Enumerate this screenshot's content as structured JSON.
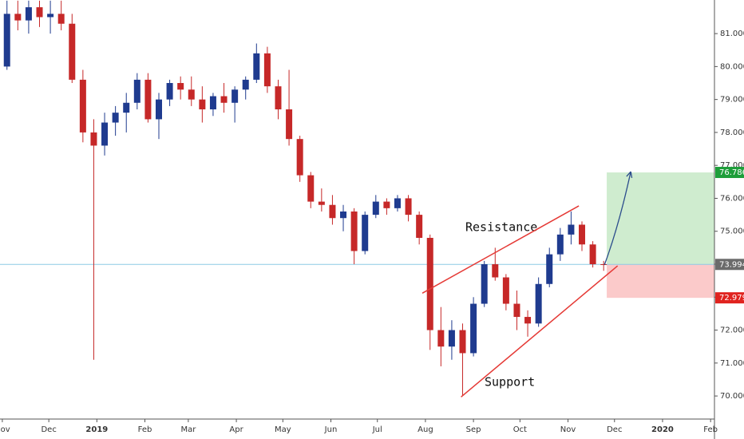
{
  "chart_data": {
    "type": "candlestick",
    "x": [
      3,
      10,
      17,
      24,
      31,
      38,
      45,
      52,
      59,
      66,
      73,
      80,
      87,
      94,
      101,
      108,
      115,
      122,
      129,
      136,
      143,
      150,
      157,
      164,
      171,
      178,
      185,
      192,
      199,
      206,
      213,
      220,
      227,
      234,
      241,
      248,
      255,
      262,
      269,
      276,
      283,
      290,
      297,
      304,
      311,
      318,
      325,
      332,
      339,
      346,
      353,
      360,
      367,
      374,
      381,
      388
    ],
    "open": [
      80.0,
      81.6,
      81.4,
      81.8,
      81.5,
      81.6,
      81.3,
      79.6,
      78.0,
      77.6,
      78.3,
      78.6,
      78.9,
      79.6,
      78.4,
      79.0,
      79.5,
      79.3,
      79.0,
      78.7,
      79.1,
      78.9,
      79.3,
      79.6,
      80.4,
      79.4,
      78.7,
      77.8,
      76.7,
      75.9,
      75.8,
      75.4,
      75.6,
      74.4,
      75.5,
      75.9,
      75.7,
      76.0,
      75.5,
      74.8,
      72.0,
      71.5,
      72.0,
      71.3,
      72.8,
      74.0,
      73.6,
      72.8,
      72.4,
      72.2,
      73.4,
      74.3,
      74.9,
      75.2,
      74.6,
      74.0
    ],
    "high": [
      82.0,
      82.0,
      82.0,
      82.0,
      82.0,
      82.0,
      81.6,
      79.9,
      78.4,
      78.6,
      78.8,
      79.2,
      79.8,
      79.8,
      79.2,
      79.6,
      79.7,
      79.7,
      79.4,
      79.2,
      79.5,
      79.4,
      79.7,
      80.7,
      80.6,
      79.6,
      79.9,
      77.9,
      76.8,
      76.3,
      76.1,
      75.8,
      75.7,
      75.6,
      76.1,
      76.0,
      76.1,
      76.1,
      75.6,
      74.9,
      72.7,
      72.3,
      72.2,
      73.0,
      74.1,
      74.5,
      73.7,
      73.2,
      72.6,
      73.6,
      74.5,
      75.1,
      75.6,
      75.3,
      74.7,
      74.1
    ],
    "low": [
      79.9,
      81.1,
      81.0,
      81.2,
      81.0,
      81.1,
      79.5,
      77.7,
      71.1,
      77.3,
      77.9,
      78.0,
      78.7,
      78.3,
      77.8,
      78.8,
      79.0,
      78.8,
      78.3,
      78.5,
      78.6,
      78.3,
      79.0,
      79.5,
      79.2,
      78.4,
      77.6,
      76.5,
      75.7,
      75.6,
      75.2,
      75.0,
      74.0,
      74.3,
      75.4,
      75.5,
      75.6,
      75.3,
      74.6,
      71.4,
      70.9,
      71.1,
      70.0,
      71.2,
      72.7,
      73.5,
      72.6,
      72.0,
      71.8,
      72.1,
      73.3,
      74.1,
      74.6,
      74.4,
      73.9,
      73.8
    ],
    "close": [
      81.6,
      81.4,
      81.8,
      81.5,
      81.6,
      81.3,
      79.6,
      78.0,
      77.6,
      78.3,
      78.6,
      78.9,
      79.6,
      78.4,
      79.0,
      79.5,
      79.3,
      79.0,
      78.7,
      79.1,
      78.9,
      79.3,
      79.6,
      80.4,
      79.4,
      78.7,
      77.8,
      76.7,
      75.9,
      75.8,
      75.4,
      75.6,
      74.4,
      75.5,
      75.9,
      75.7,
      76.0,
      75.5,
      74.8,
      72.0,
      71.5,
      72.0,
      71.3,
      72.8,
      74.0,
      73.6,
      72.8,
      72.4,
      72.2,
      73.4,
      74.3,
      74.9,
      75.2,
      74.6,
      74.0,
      73.994
    ],
    "up_color": "#1f3b8f",
    "down_color": "#c62828",
    "xlim": [
      -1.5,
      459.5
    ],
    "ylim": [
      69.3,
      82.02
    ],
    "xticks": [
      {
        "value": 0,
        "label": "Nov"
      },
      {
        "value": 30,
        "label": "Dec"
      },
      {
        "value": 61,
        "label": "2019"
      },
      {
        "value": 92,
        "label": "Feb"
      },
      {
        "value": 120,
        "label": "Mar"
      },
      {
        "value": 151,
        "label": "Apr"
      },
      {
        "value": 181,
        "label": "May"
      },
      {
        "value": 212,
        "label": "Jun"
      },
      {
        "value": 242,
        "label": "Jul"
      },
      {
        "value": 273,
        "label": "Aug"
      },
      {
        "value": 304,
        "label": "Sep"
      },
      {
        "value": 334,
        "label": "Oct"
      },
      {
        "value": 365,
        "label": "Nov"
      },
      {
        "value": 395,
        "label": "Dec"
      },
      {
        "value": 426,
        "label": "2020"
      },
      {
        "value": 457,
        "label": "Feb"
      }
    ],
    "yticks": [
      {
        "value": 70,
        "label": "70.000"
      },
      {
        "value": 71,
        "label": "71.000"
      },
      {
        "value": 72,
        "label": "72.000"
      },
      {
        "value": 73,
        "label": "73.000"
      },
      {
        "value": 74,
        "label": "74.000"
      },
      {
        "value": 75,
        "label": "75.000"
      },
      {
        "value": 76,
        "label": "76.000"
      },
      {
        "value": 77,
        "label": "77.000"
      },
      {
        "value": 78,
        "label": "78.000"
      },
      {
        "value": 79,
        "label": "79.000"
      },
      {
        "value": 80,
        "label": "80.000"
      },
      {
        "value": 81,
        "label": "81.000"
      }
    ],
    "position": {
      "start_x": 390,
      "target": 76.786,
      "entry": 73.994,
      "stop": 72.979
    },
    "trend_lines": [
      {
        "label": "Resistance",
        "x": [
          271,
          372
        ],
        "y": [
          73.12,
          75.77
        ]
      },
      {
        "label": "Support",
        "x": [
          296,
          397
        ],
        "y": [
          69.97,
          73.95
        ]
      }
    ],
    "arrow": {
      "x": [
        388.5,
        405.5
      ],
      "y": [
        73.98,
        76.81
      ]
    }
  }
}
